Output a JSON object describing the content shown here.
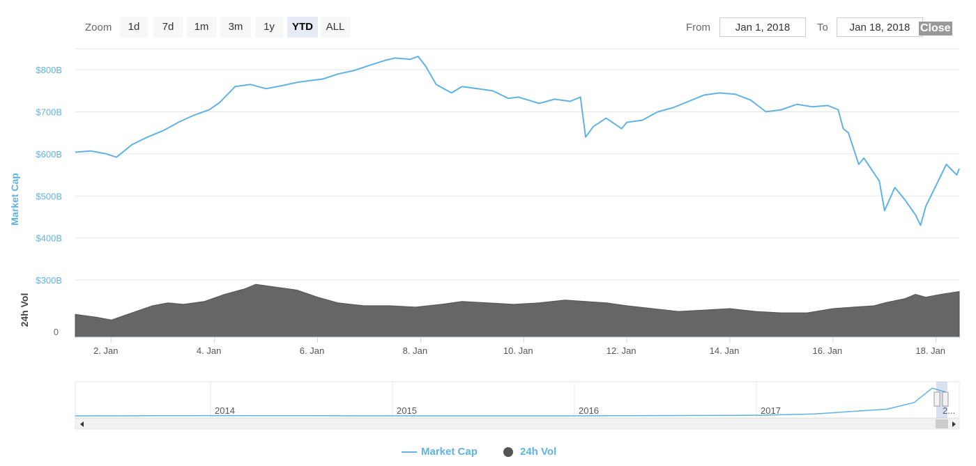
{
  "toolbar": {
    "zoom_label": "Zoom",
    "zoom_buttons": [
      "1d",
      "7d",
      "1m",
      "3m",
      "1y",
      "YTD",
      "ALL"
    ],
    "active_zoom": "YTD",
    "from_label": "From",
    "from_value": "Jan 1, 2018",
    "to_label": "To",
    "to_value": "Jan 18, 2018",
    "close_label": "Close"
  },
  "colors": {
    "market_cap": "#5fb2e3",
    "volume": "#666666",
    "axis_label": "#5fb2e3",
    "grid": "#e6e6e6"
  },
  "chart_data": {
    "type": "line",
    "ylabel": "Market Cap",
    "y2label": "24h Vol",
    "ylim": [
      300,
      850
    ],
    "y_ticks": [
      "$800B",
      "$700B",
      "$600B",
      "$500B",
      "$400B",
      "$300B"
    ],
    "y_tick_values": [
      800,
      700,
      600,
      500,
      400,
      300
    ],
    "vol_ticks": [
      "0"
    ],
    "vol_ylim": [
      0,
      40
    ],
    "xlim": [
      1.3,
      18.45
    ],
    "x_ticks": [
      "2. Jan",
      "4. Jan",
      "6. Jan",
      "8. Jan",
      "10. Jan",
      "12. Jan",
      "14. Jan",
      "16. Jan",
      "18. Jan"
    ],
    "x_tick_values": [
      2,
      4,
      6,
      8,
      10,
      12,
      14,
      16,
      18
    ],
    "series": [
      {
        "name": "Market Cap",
        "x": [
          1.3,
          1.6,
          1.9,
          2.1,
          2.4,
          2.7,
          3.0,
          3.3,
          3.6,
          3.9,
          4.1,
          4.4,
          4.7,
          5.0,
          5.3,
          5.6,
          5.9,
          6.1,
          6.4,
          6.7,
          7.0,
          7.3,
          7.5,
          7.8,
          7.95,
          8.1,
          8.3,
          8.6,
          8.8,
          9.1,
          9.4,
          9.7,
          9.9,
          10.3,
          10.6,
          10.9,
          11.1,
          11.2,
          11.35,
          11.6,
          11.9,
          12.0,
          12.3,
          12.6,
          12.9,
          13.2,
          13.5,
          13.8,
          14.1,
          14.4,
          14.7,
          15.0,
          15.3,
          15.6,
          15.9,
          16.1,
          16.2,
          16.3,
          16.5,
          16.6,
          16.9,
          17.0,
          17.2,
          17.4,
          17.6,
          17.7,
          17.8,
          18.0,
          18.2,
          18.4,
          18.45
        ],
        "y": [
          604,
          607,
          600,
          592,
          622,
          640,
          655,
          675,
          692,
          705,
          722,
          760,
          765,
          755,
          762,
          770,
          775,
          778,
          790,
          798,
          810,
          822,
          828,
          825,
          832,
          808,
          765,
          745,
          760,
          755,
          750,
          732,
          735,
          720,
          730,
          725,
          735,
          640,
          665,
          685,
          660,
          675,
          680,
          700,
          710,
          725,
          740,
          745,
          742,
          728,
          700,
          705,
          718,
          712,
          715,
          705,
          660,
          650,
          575,
          590,
          535,
          465,
          520,
          490,
          455,
          430,
          475,
          525,
          575,
          550,
          565
        ]
      },
      {
        "name": "24h Vol",
        "x": [
          1.3,
          1.7,
          2.0,
          2.4,
          2.8,
          3.1,
          3.4,
          3.8,
          4.2,
          4.6,
          4.8,
          5.2,
          5.6,
          6.0,
          6.4,
          6.9,
          7.4,
          7.9,
          8.4,
          8.8,
          9.3,
          9.8,
          10.3,
          10.8,
          11.2,
          11.6,
          12.0,
          12.5,
          13.0,
          13.5,
          14.0,
          14.5,
          15.0,
          15.5,
          16.0,
          16.4,
          16.8,
          17.0,
          17.4,
          17.6,
          17.8,
          18.1,
          18.45
        ],
        "y": [
          16,
          14,
          12,
          17,
          22,
          24,
          23,
          25,
          30,
          34,
          37,
          35,
          33,
          28,
          24,
          22,
          22,
          21,
          23,
          25,
          24,
          23,
          24,
          26,
          25,
          24,
          22,
          20,
          18,
          19,
          20,
          18,
          17,
          17,
          20,
          21,
          22,
          24,
          27,
          30,
          28,
          30,
          32
        ]
      }
    ]
  },
  "navigator": {
    "years": [
      "2014",
      "2015",
      "2016",
      "2017",
      "2..."
    ],
    "trend": [
      {
        "year": 2013.2,
        "value": 0.02
      },
      {
        "year": 2014.0,
        "value": 0.03
      },
      {
        "year": 2015.0,
        "value": 0.02
      },
      {
        "year": 2016.0,
        "value": 0.02
      },
      {
        "year": 2017.0,
        "value": 0.04
      },
      {
        "year": 2017.3,
        "value": 0.08
      },
      {
        "year": 2017.5,
        "value": 0.15
      },
      {
        "year": 2017.7,
        "value": 0.22
      },
      {
        "year": 2017.85,
        "value": 0.42
      },
      {
        "year": 2017.95,
        "value": 0.85
      },
      {
        "year": 2018.03,
        "value": 0.72
      }
    ]
  },
  "legend": {
    "market_cap": "Market Cap",
    "volume": "24h Vol"
  }
}
